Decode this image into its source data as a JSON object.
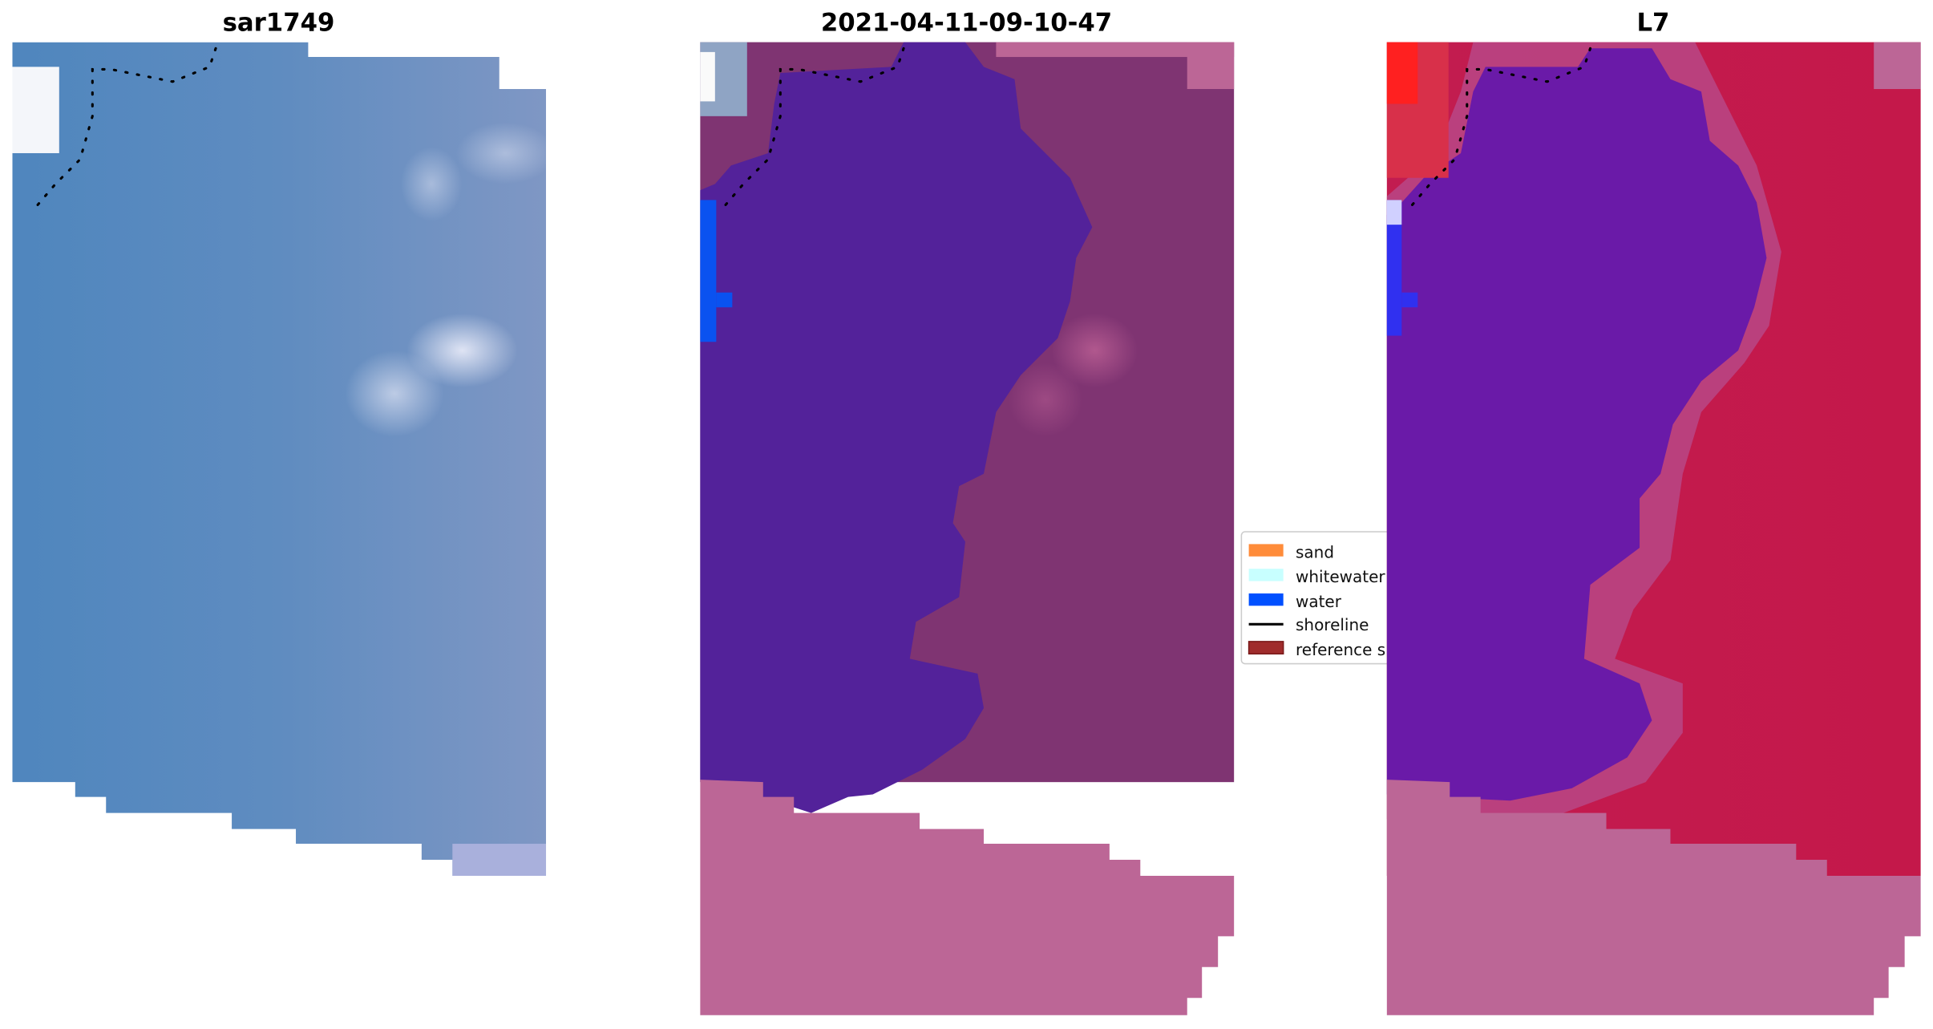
{
  "chart_data": [
    {
      "type": "heatmap",
      "title": "sar1749",
      "description_of_layer": "RGB image",
      "shoreline": "dotted black"
    },
    {
      "type": "heatmap",
      "title": "2021-04-11-09-10-47",
      "classes_shown": [
        "water",
        "land"
      ],
      "shoreline": "dotted black"
    },
    {
      "type": "heatmap",
      "title": "L7",
      "colormap": "water index (purple to crimson)",
      "shoreline": "dotted black"
    }
  ],
  "legend": {
    "placement": "center",
    "items": [
      {
        "label": "sand",
        "color": "#ff8c3a",
        "kind": "patch"
      },
      {
        "label": "whitewater",
        "color": "#c8ffff",
        "kind": "patch"
      },
      {
        "label": "water",
        "color": "#0050ff",
        "kind": "patch"
      },
      {
        "label": "shoreline",
        "color": "#000000",
        "kind": "line"
      },
      {
        "label": "reference s",
        "color": "#a02c2c",
        "kind": "patch"
      }
    ]
  },
  "colors": {
    "rgb_water": "#5a8ec0",
    "rgb_land": "#7e96c2",
    "class_water": "#53229a",
    "class_land": "#7f3472",
    "nodata": "#bc6696",
    "index_low": "#6a1aa8",
    "index_high": "#c41c4e"
  }
}
